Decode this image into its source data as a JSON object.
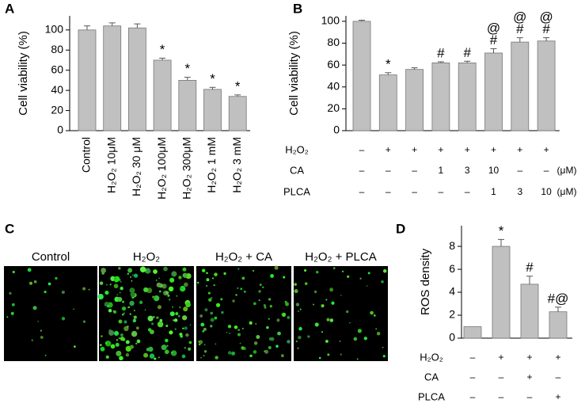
{
  "chart_data": [
    {
      "panel": "A",
      "type": "bar",
      "ylabel": "Cell viability (%)",
      "color": "#c0c0c0",
      "categories": [
        "Control",
        "H₂O₂  10μM",
        "H₂O₂ 30 μM",
        "H₂O₂ 100μM",
        "H₂O₂ 300μM",
        "H₂O₂ 1 mM",
        "H₂O₂ 3 mM"
      ],
      "values": [
        100,
        104,
        102,
        70,
        50,
        41,
        34
      ],
      "errors": [
        4,
        3,
        4,
        2,
        3,
        2,
        1.5
      ],
      "annotations": [
        [],
        [],
        [],
        [
          "*"
        ],
        [
          "*"
        ],
        [
          "*"
        ],
        [
          "*"
        ]
      ],
      "ylim": [
        0,
        114
      ],
      "yticks": [
        0,
        20,
        40,
        60,
        80,
        100
      ]
    },
    {
      "panel": "B",
      "type": "bar",
      "ylabel": "Cell viability (%)",
      "color": "#c0c0c0",
      "categories": [
        null,
        null,
        null,
        null,
        null,
        null,
        null,
        null
      ],
      "values": [
        100,
        51,
        56,
        62,
        62,
        71,
        81,
        82
      ],
      "errors": [
        1,
        2,
        1.5,
        1,
        1.5,
        4,
        4,
        3
      ],
      "annotations": [
        [],
        [
          "*"
        ],
        [],
        [
          "#"
        ],
        [
          "#"
        ],
        [
          "@",
          "#"
        ],
        [
          "@",
          "#"
        ],
        [
          "@",
          "#"
        ]
      ],
      "rows": [
        {
          "label": "H₂O₂",
          "cells": [
            "–",
            "+",
            "+",
            "+",
            "+",
            "+",
            "+",
            "+"
          ]
        },
        {
          "label": "CA",
          "cells": [
            "–",
            "–",
            "–",
            "1",
            "3",
            "10",
            "–",
            "–"
          ],
          "unit": "(μM)"
        },
        {
          "label": "PLCA",
          "cells": [
            "–",
            "–",
            "–",
            "–",
            "–",
            "1",
            "3",
            "10"
          ],
          "unit": "(μM)"
        }
      ],
      "ylim": [
        0,
        105
      ],
      "yticks": [
        0,
        20,
        40,
        60,
        80,
        100
      ]
    },
    {
      "panel": "D",
      "type": "bar",
      "ylabel": "ROS density",
      "color": "#c0c0c0",
      "categories": [
        null,
        null,
        null,
        null
      ],
      "values": [
        1,
        8,
        4.7,
        2.3
      ],
      "errors": [
        0,
        0.6,
        0.7,
        0.4
      ],
      "annotations": [
        [],
        [
          "*"
        ],
        [
          "#"
        ],
        [
          "#@"
        ]
      ],
      "rows": [
        {
          "label": "H₂O₂",
          "cells": [
            "–",
            "+",
            "+",
            "+"
          ]
        },
        {
          "label": "CA",
          "cells": [
            "–",
            "–",
            "+",
            "–"
          ]
        },
        {
          "label": "PLCA",
          "cells": [
            "–",
            "–",
            "–",
            "+"
          ]
        }
      ],
      "ylim": [
        0,
        9.8
      ],
      "yticks": [
        0,
        2,
        4,
        6,
        8
      ]
    }
  ],
  "micrographs": {
    "panel": "C",
    "labels": [
      "Control",
      "H₂O₂",
      "H₂O₂ + CA",
      "H₂O₂ + PLCA"
    ]
  }
}
